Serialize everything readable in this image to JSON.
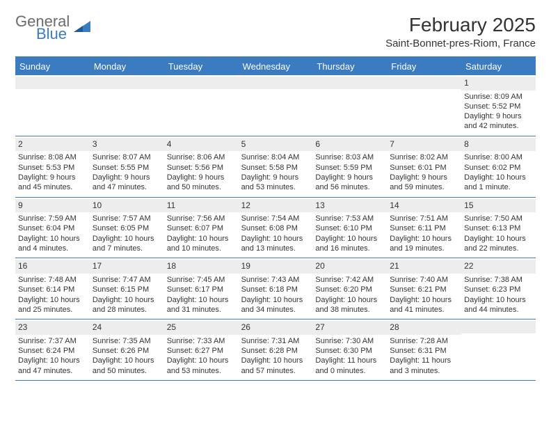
{
  "logo": {
    "line1": "General",
    "line2": "Blue"
  },
  "title": "February 2025",
  "location": "Saint-Bonnet-pres-Riom, France",
  "colors": {
    "header_bg": "#3b7bbf",
    "header_text": "#ffffff",
    "daynum_bg": "#ededed",
    "text": "#333333",
    "logo_gray": "#6b6b6b",
    "logo_blue": "#3b7bbf"
  },
  "day_names": [
    "Sunday",
    "Monday",
    "Tuesday",
    "Wednesday",
    "Thursday",
    "Friday",
    "Saturday"
  ],
  "weeks": [
    [
      null,
      null,
      null,
      null,
      null,
      null,
      {
        "n": "1",
        "sunrise": "8:09 AM",
        "sunset": "5:52 PM",
        "daylight": "9 hours and 42 minutes."
      }
    ],
    [
      {
        "n": "2",
        "sunrise": "8:08 AM",
        "sunset": "5:53 PM",
        "daylight": "9 hours and 45 minutes."
      },
      {
        "n": "3",
        "sunrise": "8:07 AM",
        "sunset": "5:55 PM",
        "daylight": "9 hours and 47 minutes."
      },
      {
        "n": "4",
        "sunrise": "8:06 AM",
        "sunset": "5:56 PM",
        "daylight": "9 hours and 50 minutes."
      },
      {
        "n": "5",
        "sunrise": "8:04 AM",
        "sunset": "5:58 PM",
        "daylight": "9 hours and 53 minutes."
      },
      {
        "n": "6",
        "sunrise": "8:03 AM",
        "sunset": "5:59 PM",
        "daylight": "9 hours and 56 minutes."
      },
      {
        "n": "7",
        "sunrise": "8:02 AM",
        "sunset": "6:01 PM",
        "daylight": "9 hours and 59 minutes."
      },
      {
        "n": "8",
        "sunrise": "8:00 AM",
        "sunset": "6:02 PM",
        "daylight": "10 hours and 1 minute."
      }
    ],
    [
      {
        "n": "9",
        "sunrise": "7:59 AM",
        "sunset": "6:04 PM",
        "daylight": "10 hours and 4 minutes."
      },
      {
        "n": "10",
        "sunrise": "7:57 AM",
        "sunset": "6:05 PM",
        "daylight": "10 hours and 7 minutes."
      },
      {
        "n": "11",
        "sunrise": "7:56 AM",
        "sunset": "6:07 PM",
        "daylight": "10 hours and 10 minutes."
      },
      {
        "n": "12",
        "sunrise": "7:54 AM",
        "sunset": "6:08 PM",
        "daylight": "10 hours and 13 minutes."
      },
      {
        "n": "13",
        "sunrise": "7:53 AM",
        "sunset": "6:10 PM",
        "daylight": "10 hours and 16 minutes."
      },
      {
        "n": "14",
        "sunrise": "7:51 AM",
        "sunset": "6:11 PM",
        "daylight": "10 hours and 19 minutes."
      },
      {
        "n": "15",
        "sunrise": "7:50 AM",
        "sunset": "6:13 PM",
        "daylight": "10 hours and 22 minutes."
      }
    ],
    [
      {
        "n": "16",
        "sunrise": "7:48 AM",
        "sunset": "6:14 PM",
        "daylight": "10 hours and 25 minutes."
      },
      {
        "n": "17",
        "sunrise": "7:47 AM",
        "sunset": "6:15 PM",
        "daylight": "10 hours and 28 minutes."
      },
      {
        "n": "18",
        "sunrise": "7:45 AM",
        "sunset": "6:17 PM",
        "daylight": "10 hours and 31 minutes."
      },
      {
        "n": "19",
        "sunrise": "7:43 AM",
        "sunset": "6:18 PM",
        "daylight": "10 hours and 34 minutes."
      },
      {
        "n": "20",
        "sunrise": "7:42 AM",
        "sunset": "6:20 PM",
        "daylight": "10 hours and 38 minutes."
      },
      {
        "n": "21",
        "sunrise": "7:40 AM",
        "sunset": "6:21 PM",
        "daylight": "10 hours and 41 minutes."
      },
      {
        "n": "22",
        "sunrise": "7:38 AM",
        "sunset": "6:23 PM",
        "daylight": "10 hours and 44 minutes."
      }
    ],
    [
      {
        "n": "23",
        "sunrise": "7:37 AM",
        "sunset": "6:24 PM",
        "daylight": "10 hours and 47 minutes."
      },
      {
        "n": "24",
        "sunrise": "7:35 AM",
        "sunset": "6:26 PM",
        "daylight": "10 hours and 50 minutes."
      },
      {
        "n": "25",
        "sunrise": "7:33 AM",
        "sunset": "6:27 PM",
        "daylight": "10 hours and 53 minutes."
      },
      {
        "n": "26",
        "sunrise": "7:31 AM",
        "sunset": "6:28 PM",
        "daylight": "10 hours and 57 minutes."
      },
      {
        "n": "27",
        "sunrise": "7:30 AM",
        "sunset": "6:30 PM",
        "daylight": "11 hours and 0 minutes."
      },
      {
        "n": "28",
        "sunrise": "7:28 AM",
        "sunset": "6:31 PM",
        "daylight": "11 hours and 3 minutes."
      },
      null
    ]
  ],
  "labels": {
    "sunrise": "Sunrise:",
    "sunset": "Sunset:",
    "daylight": "Daylight:"
  }
}
